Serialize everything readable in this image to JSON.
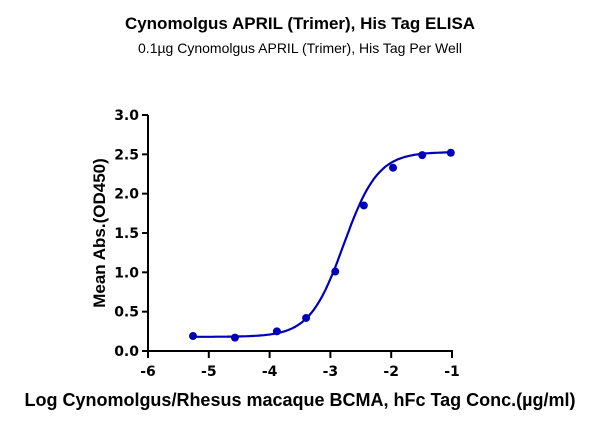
{
  "chart_data": {
    "type": "line",
    "title": "Cynomolgus APRIL (Trimer), His Tag ELISA",
    "subtitle": "0.1µg Cynomolgus APRIL (Trimer), His Tag Per Well",
    "xlabel": "Log Cynomolgus/Rhesus macaque BCMA, hFc Tag Conc.(µg/ml)",
    "ylabel": "Mean Abs.(OD450)",
    "xlim": [
      -6,
      -1
    ],
    "ylim": [
      0,
      3.0
    ],
    "x_ticks": [
      "-6",
      "-5",
      "-4",
      "-3",
      "-2",
      "-1"
    ],
    "y_ticks": [
      "0.0",
      "0.5",
      "1.0",
      "1.5",
      "2.0",
      "2.5",
      "3.0"
    ],
    "grid": false,
    "legend": null,
    "series": [
      {
        "name": "Cynomolgus/Rhesus macaque BCMA, hFc Tag",
        "color": "#0000BB",
        "x": [
          -5.26,
          -4.57,
          -3.88,
          -3.4,
          -2.92,
          -2.45,
          -1.97,
          -1.49,
          -1.02
        ],
        "y": [
          0.19,
          0.17,
          0.25,
          0.42,
          1.01,
          1.85,
          2.33,
          2.49,
          2.52
        ],
        "fit": "sigmoidal 4PL"
      }
    ]
  }
}
